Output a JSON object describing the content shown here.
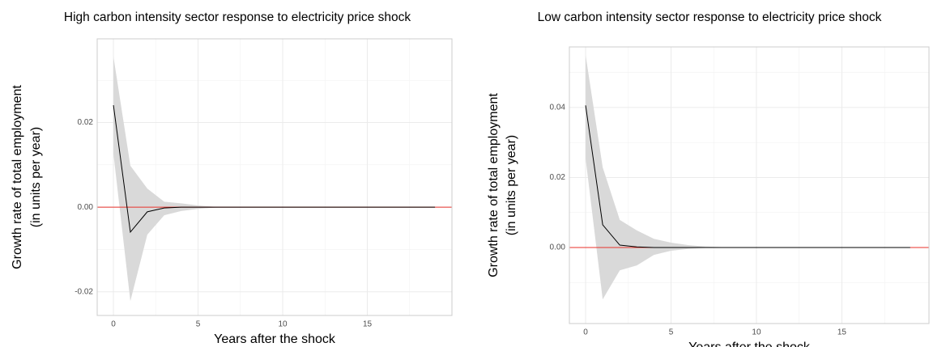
{
  "chart_data": [
    {
      "type": "line",
      "title": "High carbon intensity sector response to electricity price shock",
      "xlabel": "Years after the shock",
      "ylabel": [
        "Growth rate of total employment",
        "(in units per year)"
      ],
      "x": [
        0,
        1,
        2,
        3,
        4,
        5,
        6,
        7,
        8,
        9,
        10,
        11,
        12,
        13,
        14,
        15,
        16,
        17,
        18,
        19
      ],
      "series": [
        {
          "color": "#000000",
          "values": [
            0.0241,
            -0.0059,
            -0.0011,
            -0.0002,
            0,
            0,
            0,
            0,
            0,
            0,
            0,
            0,
            0,
            0,
            0,
            0,
            0,
            0,
            0,
            0
          ]
        }
      ],
      "band": {
        "color": "#d9d9d9",
        "upper": [
          0.0356,
          0.0098,
          0.0044,
          0.0013,
          0.0009,
          0.0004,
          0.0001,
          0,
          0,
          0,
          0,
          0,
          0,
          0,
          0,
          0,
          0,
          0,
          0,
          0
        ],
        "lower": [
          0.0126,
          -0.0222,
          -0.0065,
          -0.0019,
          -0.0009,
          -0.0004,
          -0.0001,
          0,
          0,
          0,
          0,
          0,
          0,
          0,
          0,
          0,
          0,
          0,
          0,
          0
        ]
      },
      "hline": {
        "value": 0,
        "color": "#e8322a"
      },
      "xlim": [
        -0.96,
        20.0
      ],
      "ylim": [
        -0.0256,
        0.0398
      ],
      "xticks": [
        0,
        5,
        10,
        15
      ],
      "yticks": [
        -0.02,
        {
          "value": 0,
          "label": "0.00"
        },
        0.02
      ],
      "grid": true
    },
    {
      "type": "line",
      "title": "Low carbon intensity sector response to electricity price shock",
      "xlabel": "Years after the shock",
      "ylabel": [
        "Growth rate of total employment",
        "(in units per year)"
      ],
      "x": [
        0,
        1,
        2,
        3,
        4,
        5,
        6,
        7,
        8,
        9,
        10,
        11,
        12,
        13,
        14,
        15,
        16,
        17,
        18,
        19
      ],
      "series": [
        {
          "color": "#000000",
          "values": [
            0.0406,
            0.0065,
            0.0007,
            0.0002,
            0,
            0,
            0,
            0,
            0,
            0,
            0,
            0,
            0,
            0,
            0,
            0,
            0,
            0,
            0,
            0
          ]
        }
      ],
      "band": {
        "color": "#d9d9d9",
        "upper": [
          0.055,
          0.0229,
          0.0079,
          0.0049,
          0.0025,
          0.0014,
          0.0007,
          0.0003,
          0.0001,
          0,
          0,
          0,
          0,
          0,
          0,
          0,
          0,
          0,
          0,
          0
        ],
        "lower": [
          0.0254,
          -0.0148,
          -0.0065,
          -0.0051,
          -0.0021,
          -0.0009,
          -0.0004,
          -0.0001,
          0,
          0,
          0,
          0,
          0,
          0,
          0,
          0,
          0,
          0,
          0,
          0
        ]
      },
      "hline": {
        "value": 0,
        "color": "#e8322a"
      },
      "xlim": [
        -0.95,
        20.1
      ],
      "ylim": [
        -0.0217,
        0.0573
      ],
      "xticks": [
        0,
        5,
        10,
        15
      ],
      "yticks": [
        {
          "value": 0,
          "label": "0.00"
        },
        0.02,
        0.04
      ],
      "grid": true
    }
  ]
}
